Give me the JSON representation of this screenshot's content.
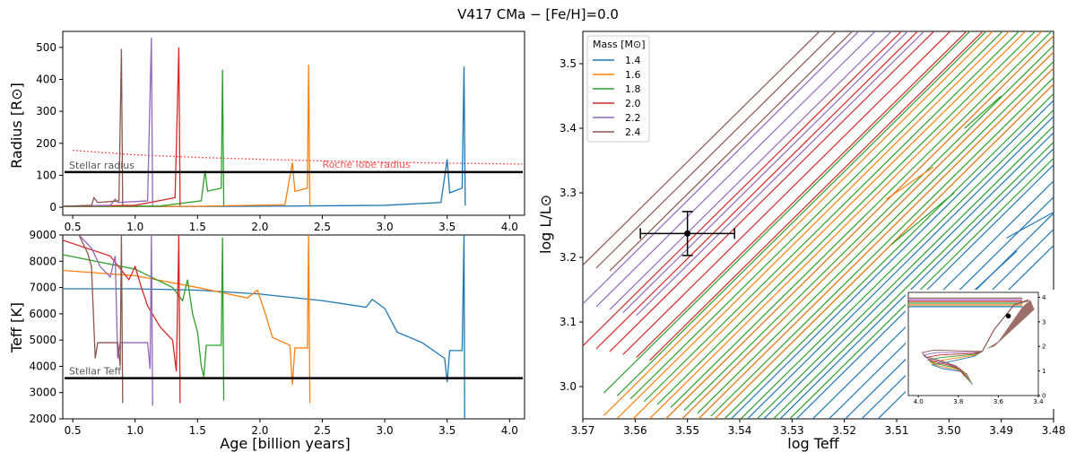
{
  "title": "V417 CMa − [Fe/H]=0.0",
  "colors": {
    "1.4": "#1f77b4",
    "1.6": "#ff7f0e",
    "1.8": "#2ca02c",
    "2.0": "#d62728",
    "2.2": "#9467bd",
    "2.4": "#8c564b",
    "roche": "#ff5555",
    "stellar": "#000000"
  },
  "chart_data": [
    {
      "id": "radius",
      "type": "line",
      "ylabel": "Radius [R⊙]",
      "xlim": [
        0.42,
        4.12
      ],
      "ylim": [
        -25,
        550
      ],
      "xticks": [
        "0.5",
        "1.0",
        "1.5",
        "2.0",
        "2.5",
        "3.0",
        "3.5",
        "4.0"
      ],
      "xtick_values": [
        0.5,
        1.0,
        1.5,
        2.0,
        2.5,
        3.0,
        3.5,
        4.0
      ],
      "yticks": [
        0,
        100,
        200,
        300,
        400,
        500
      ],
      "annotations": {
        "stellar_label": "Stellar radius",
        "roche_label": "Roche lobe radius"
      },
      "stellar_radius": 110,
      "roche_lobe": [
        [
          0.5,
          178
        ],
        [
          1.0,
          164
        ],
        [
          1.5,
          156
        ],
        [
          2.0,
          150
        ],
        [
          2.5,
          145
        ],
        [
          3.0,
          141
        ],
        [
          3.5,
          138
        ],
        [
          4.1,
          135
        ]
      ],
      "series": [
        {
          "mass": "1.4",
          "points": [
            [
              0.42,
              2
            ],
            [
              1.0,
              2
            ],
            [
              2.0,
              3
            ],
            [
              3.0,
              6
            ],
            [
              3.45,
              15
            ],
            [
              3.5,
              150
            ],
            [
              3.52,
              45
            ],
            [
              3.62,
              60
            ],
            [
              3.635,
              440
            ],
            [
              3.645,
              5
            ]
          ]
        },
        {
          "mass": "1.6",
          "points": [
            [
              0.42,
              2
            ],
            [
              1.5,
              3
            ],
            [
              2.2,
              8
            ],
            [
              2.26,
              140
            ],
            [
              2.28,
              50
            ],
            [
              2.38,
              60
            ],
            [
              2.39,
              445
            ],
            [
              2.4,
              5
            ]
          ]
        },
        {
          "mass": "1.8",
          "points": [
            [
              0.42,
              2
            ],
            [
              1.2,
              4
            ],
            [
              1.53,
              20
            ],
            [
              1.56,
              115
            ],
            [
              1.58,
              50
            ],
            [
              1.69,
              60
            ],
            [
              1.7,
              430
            ],
            [
              1.71,
              5
            ]
          ]
        },
        {
          "mass": "2.0",
          "points": [
            [
              0.42,
              3
            ],
            [
              1.0,
              6
            ],
            [
              1.32,
              30
            ],
            [
              1.35,
              500
            ],
            [
              1.36,
              5
            ]
          ]
        },
        {
          "mass": "2.2",
          "points": [
            [
              0.42,
              3
            ],
            [
              0.8,
              6
            ],
            [
              0.84,
              25
            ],
            [
              0.86,
              15
            ],
            [
              1.1,
              20
            ],
            [
              1.13,
              530
            ],
            [
              1.14,
              5
            ]
          ]
        },
        {
          "mass": "2.4",
          "points": [
            [
              0.42,
              3
            ],
            [
              0.65,
              6
            ],
            [
              0.67,
              30
            ],
            [
              0.7,
              15
            ],
            [
              0.87,
              20
            ],
            [
              0.89,
              495
            ],
            [
              0.9,
              5
            ]
          ]
        }
      ]
    },
    {
      "id": "teff",
      "type": "line",
      "xlabel": "Age [billion years]",
      "ylabel": "Teff [K]",
      "xlim": [
        0.42,
        4.12
      ],
      "ylim": [
        2000,
        9000
      ],
      "xticks": [
        "0.5",
        "1.0",
        "1.5",
        "2.0",
        "2.5",
        "3.0",
        "3.5",
        "4.0"
      ],
      "xtick_values": [
        0.5,
        1.0,
        1.5,
        2.0,
        2.5,
        3.0,
        3.5,
        4.0
      ],
      "yticks": [
        2000,
        3000,
        4000,
        5000,
        6000,
        7000,
        8000,
        9000
      ],
      "annotations": {
        "stellar_label": "Stellar Teff"
      },
      "stellar_teff": 3550,
      "series": [
        {
          "mass": "1.4",
          "points": [
            [
              0.42,
              6950
            ],
            [
              1.0,
              6950
            ],
            [
              1.5,
              6900
            ],
            [
              2.0,
              6750
            ],
            [
              2.5,
              6500
            ],
            [
              2.85,
              6250
            ],
            [
              2.9,
              6550
            ],
            [
              3.0,
              6200
            ],
            [
              3.1,
              5300
            ],
            [
              3.3,
              4900
            ],
            [
              3.48,
              4300
            ],
            [
              3.5,
              3400
            ],
            [
              3.52,
              4600
            ],
            [
              3.62,
              4600
            ],
            [
              3.635,
              9000
            ],
            [
              3.64,
              2000
            ]
          ]
        },
        {
          "mass": "1.6",
          "points": [
            [
              0.42,
              7650
            ],
            [
              1.0,
              7450
            ],
            [
              1.5,
              7000
            ],
            [
              1.9,
              6600
            ],
            [
              1.98,
              6900
            ],
            [
              2.05,
              5900
            ],
            [
              2.1,
              5100
            ],
            [
              2.24,
              4800
            ],
            [
              2.26,
              3300
            ],
            [
              2.28,
              4700
            ],
            [
              2.38,
              4700
            ],
            [
              2.39,
              9000
            ],
            [
              2.4,
              2600
            ]
          ]
        },
        {
          "mass": "1.8",
          "points": [
            [
              0.42,
              8250
            ],
            [
              1.0,
              7700
            ],
            [
              1.3,
              7000
            ],
            [
              1.38,
              6500
            ],
            [
              1.42,
              7300
            ],
            [
              1.46,
              6000
            ],
            [
              1.5,
              5300
            ],
            [
              1.53,
              4000
            ],
            [
              1.55,
              3600
            ],
            [
              1.57,
              4800
            ],
            [
              1.69,
              4800
            ],
            [
              1.7,
              8900
            ],
            [
              1.71,
              2700
            ]
          ]
        },
        {
          "mass": "2.0",
          "points": [
            [
              0.42,
              8800
            ],
            [
              0.8,
              8200
            ],
            [
              0.95,
              7300
            ],
            [
              1.0,
              7800
            ],
            [
              1.05,
              7000
            ],
            [
              1.1,
              6300
            ],
            [
              1.2,
              5500
            ],
            [
              1.3,
              5000
            ],
            [
              1.33,
              3800
            ],
            [
              1.35,
              9000
            ],
            [
              1.36,
              2600
            ]
          ]
        },
        {
          "mass": "2.2",
          "points": [
            [
              0.55,
              9000
            ],
            [
              0.65,
              8500
            ],
            [
              0.72,
              7800
            ],
            [
              0.8,
              7400
            ],
            [
              0.84,
              8200
            ],
            [
              0.86,
              4300
            ],
            [
              0.88,
              4900
            ],
            [
              1.1,
              4900
            ],
            [
              1.12,
              3900
            ],
            [
              1.13,
              9000
            ],
            [
              1.14,
              2500
            ]
          ]
        },
        {
          "mass": "2.4",
          "points": [
            [
              0.55,
              9000
            ],
            [
              0.62,
              8300
            ],
            [
              0.65,
              7800
            ],
            [
              0.68,
              4300
            ],
            [
              0.7,
              4900
            ],
            [
              0.86,
              4900
            ],
            [
              0.88,
              4000
            ],
            [
              0.89,
              9000
            ],
            [
              0.9,
              2600
            ]
          ]
        }
      ]
    },
    {
      "id": "hrd",
      "type": "line",
      "xlabel": "log Teff",
      "ylabel": "log L/L⊙",
      "xlim": [
        3.57,
        3.48
      ],
      "ylim": [
        2.95,
        3.55
      ],
      "xticks": [
        "3.57",
        "3.56",
        "3.55",
        "3.54",
        "3.53",
        "3.52",
        "3.51",
        "3.50",
        "3.49",
        "3.48"
      ],
      "xtick_values": [
        3.57,
        3.56,
        3.55,
        3.54,
        3.53,
        3.52,
        3.51,
        3.5,
        3.49,
        3.48
      ],
      "yticks": [
        "3.0",
        "3.1",
        "3.2",
        "3.3",
        "3.4",
        "3.5"
      ],
      "ytick_values": [
        3.0,
        3.1,
        3.2,
        3.3,
        3.4,
        3.5
      ],
      "legend": {
        "title": "Mass [M⊙]",
        "entries": [
          "1.4",
          "1.6",
          "1.8",
          "2.0",
          "2.2",
          "2.4"
        ],
        "placement": "top-left"
      },
      "observed": {
        "logT": 3.55,
        "logL": 3.237,
        "logT_err": 0.009,
        "logL_err": 0.034
      },
      "tracks": [
        {
          "mass": "2.4",
          "count": 3,
          "start": 3.57,
          "intercept": 3.188
        },
        {
          "mass": "2.2",
          "count": 5,
          "start": 3.57,
          "intercept": 3.128
        },
        {
          "mass": "2.0",
          "count": 6,
          "start": 3.57,
          "intercept": 3.063
        },
        {
          "mass": "1.8",
          "count": 14,
          "start": 3.566,
          "intercept": 2.99
        },
        {
          "mass": "1.6",
          "count": 8,
          "start": 3.566,
          "intercept": 2.955
        },
        {
          "mass": "1.4",
          "count": 14,
          "start": 3.556,
          "intercept": 2.935
        }
      ],
      "inset": {
        "xticks": [
          "4.0",
          "3.8",
          "3.6",
          "3.4"
        ],
        "xtick_values": [
          4.0,
          3.8,
          3.6,
          3.4
        ],
        "yticks": [
          "0",
          "1",
          "2",
          "3",
          "4"
        ],
        "ytick_values": [
          0,
          1,
          2,
          3,
          4
        ],
        "xlim": [
          4.05,
          3.4
        ],
        "ylim": [
          0,
          4.2
        ],
        "observed": {
          "logT": 3.55,
          "logL": 3.24
        }
      }
    }
  ]
}
